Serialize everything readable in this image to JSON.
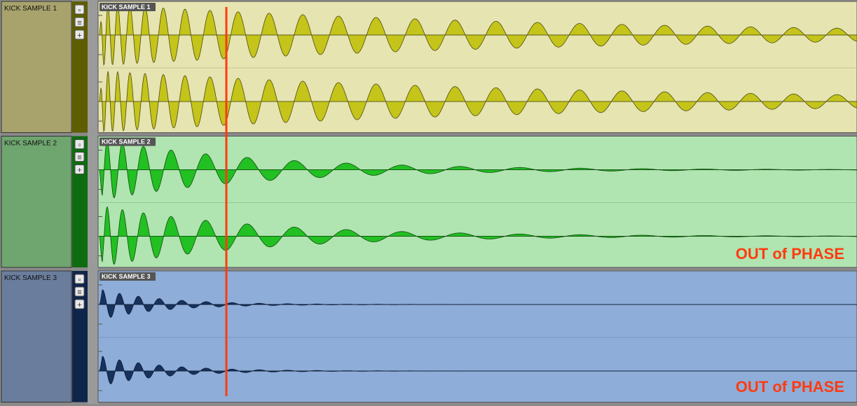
{
  "tracks": [
    {
      "name": "KICK SAMPLE 1",
      "clip": "KICK SAMPLE 1"
    },
    {
      "name": "KICK SAMPLE 2",
      "clip": "KICK SAMPLE 2"
    },
    {
      "name": "KICK SAMPLE 3",
      "clip": "KICK SAMPLE 3"
    }
  ],
  "annotations": [
    "OUT of PHASE",
    "OUT of PHASE"
  ]
}
